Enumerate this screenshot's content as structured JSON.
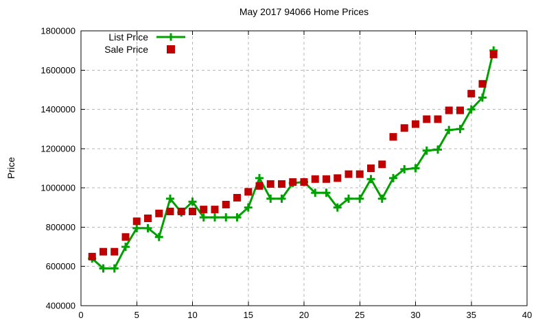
{
  "chart_data": {
    "type": "line",
    "title": "May 2017 94066 Home Prices",
    "xlabel": "",
    "ylabel": "Price",
    "xlim": [
      0,
      40
    ],
    "ylim": [
      400000,
      1800000
    ],
    "xticks": [
      0,
      5,
      10,
      15,
      20,
      25,
      30,
      35,
      40
    ],
    "yticks": [
      400000,
      600000,
      800000,
      1000000,
      1200000,
      1400000,
      1600000,
      1800000
    ],
    "grid": true,
    "legend_position": "top-left",
    "background_color": "#ffffff",
    "grid_color": "#b5b5b5",
    "border_color": "#000000",
    "x": [
      1,
      2,
      3,
      4,
      5,
      6,
      7,
      8,
      9,
      10,
      11,
      12,
      13,
      14,
      15,
      16,
      17,
      18,
      19,
      20,
      21,
      22,
      23,
      24,
      25,
      26,
      27,
      28,
      29,
      30,
      31,
      32,
      33,
      34,
      35,
      36,
      37
    ],
    "series": [
      {
        "name": "List Price",
        "color": "#00a000",
        "marker": "plus",
        "line": true,
        "values": [
          640000,
          590000,
          590000,
          700000,
          795000,
          795000,
          750000,
          945000,
          875000,
          930000,
          850000,
          850000,
          850000,
          850000,
          900000,
          1050000,
          945000,
          945000,
          1025000,
          1030000,
          975000,
          975000,
          900000,
          945000,
          945000,
          1045000,
          945000,
          1050000,
          1095000,
          1100000,
          1190000,
          1195000,
          1295000,
          1300000,
          1400000,
          1460000,
          1700000
        ]
      },
      {
        "name": "Sale Price",
        "color": "#c00000",
        "marker": "square",
        "line": false,
        "values": [
          650000,
          675000,
          675000,
          750000,
          830000,
          845000,
          870000,
          880000,
          880000,
          880000,
          890000,
          890000,
          915000,
          950000,
          980000,
          1010000,
          1020000,
          1020000,
          1030000,
          1030000,
          1045000,
          1045000,
          1050000,
          1070000,
          1070000,
          1100000,
          1120000,
          1260000,
          1305000,
          1325000,
          1350000,
          1350000,
          1395000,
          1395000,
          1480000,
          1530000,
          1680000
        ]
      }
    ]
  }
}
